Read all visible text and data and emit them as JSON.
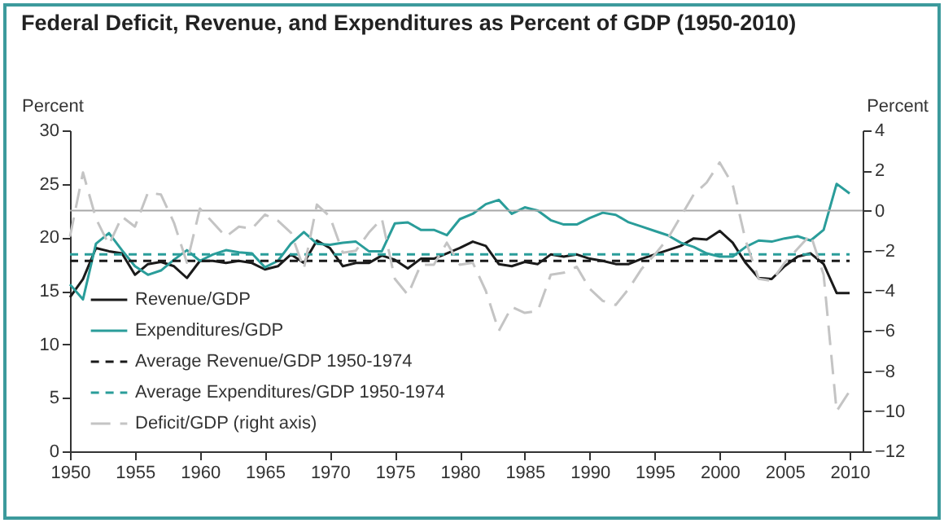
{
  "chart_data": {
    "type": "line",
    "title": "Federal Deficit, Revenue, and Expenditures as Percent of GDP (1950-2010)",
    "ylabel": "Percent",
    "y2label": "Percent",
    "x": [
      1950,
      1951,
      1952,
      1953,
      1954,
      1955,
      1956,
      1957,
      1958,
      1959,
      1960,
      1961,
      1962,
      1963,
      1964,
      1965,
      1966,
      1967,
      1968,
      1969,
      1970,
      1971,
      1972,
      1973,
      1974,
      1975,
      1976,
      1977,
      1978,
      1979,
      1980,
      1981,
      1982,
      1983,
      1984,
      1985,
      1986,
      1987,
      1988,
      1989,
      1990,
      1991,
      1992,
      1993,
      1994,
      1995,
      1996,
      1997,
      1998,
      1999,
      2000,
      2001,
      2002,
      2003,
      2004,
      2005,
      2006,
      2007,
      2008,
      2009,
      2010
    ],
    "series": [
      {
        "name": "Revenue/GDP",
        "color": "#1a1a1a",
        "line_style": "solid",
        "values": [
          14.4,
          16.1,
          19.0,
          18.7,
          18.5,
          16.5,
          17.5,
          17.7,
          17.3,
          16.2,
          17.8,
          17.8,
          17.6,
          17.8,
          17.6,
          17.0,
          17.3,
          18.4,
          17.6,
          19.7,
          19.0,
          17.3,
          17.6,
          17.6,
          18.3,
          17.9,
          17.1,
          18.0,
          18.0,
          18.5,
          19.0,
          19.6,
          19.2,
          17.5,
          17.3,
          17.7,
          17.5,
          18.4,
          18.2,
          18.4,
          18.0,
          17.8,
          17.5,
          17.5,
          18.0,
          18.4,
          18.8,
          19.2,
          19.9,
          19.8,
          20.6,
          19.5,
          17.6,
          16.2,
          16.1,
          17.3,
          18.2,
          18.5,
          17.5,
          14.8,
          14.8
        ]
      },
      {
        "name": "Expenditures/GDP",
        "color": "#2a9d9a",
        "line_style": "solid",
        "values": [
          15.6,
          14.2,
          19.4,
          20.4,
          18.8,
          17.3,
          16.5,
          16.9,
          17.9,
          18.8,
          17.8,
          18.4,
          18.8,
          18.6,
          18.5,
          17.2,
          17.8,
          19.4,
          20.5,
          19.4,
          19.3,
          19.5,
          19.6,
          18.7,
          18.7,
          21.3,
          21.4,
          20.7,
          20.7,
          20.2,
          21.7,
          22.2,
          23.1,
          23.5,
          22.2,
          22.8,
          22.5,
          21.6,
          21.2,
          21.2,
          21.8,
          22.3,
          22.1,
          21.4,
          21.0,
          20.6,
          20.2,
          19.5,
          19.1,
          18.5,
          18.2,
          18.2,
          19.1,
          19.7,
          19.6,
          19.9,
          20.1,
          19.7,
          20.7,
          25.0,
          24.1
        ]
      },
      {
        "name": "Average Revenue/GDP 1950-1974",
        "color": "#1a1a1a",
        "line_style": "dashed",
        "values": [
          17.8,
          17.8,
          17.8,
          17.8,
          17.8,
          17.8,
          17.8,
          17.8,
          17.8,
          17.8,
          17.8,
          17.8,
          17.8,
          17.8,
          17.8,
          17.8,
          17.8,
          17.8,
          17.8,
          17.8,
          17.8,
          17.8,
          17.8,
          17.8,
          17.8,
          17.8,
          17.8,
          17.8,
          17.8,
          17.8,
          17.8,
          17.8,
          17.8,
          17.8,
          17.8,
          17.8,
          17.8,
          17.8,
          17.8,
          17.8,
          17.8,
          17.8,
          17.8,
          17.8,
          17.8,
          17.8,
          17.8,
          17.8,
          17.8,
          17.8,
          17.8,
          17.8,
          17.8,
          17.8,
          17.8,
          17.8,
          17.8,
          17.8,
          17.8,
          17.8,
          17.8
        ]
      },
      {
        "name": "Average Expenditures/GDP 1950-1974",
        "color": "#2a9d9a",
        "line_style": "dashed",
        "values": [
          18.4,
          18.4,
          18.4,
          18.4,
          18.4,
          18.4,
          18.4,
          18.4,
          18.4,
          18.4,
          18.4,
          18.4,
          18.4,
          18.4,
          18.4,
          18.4,
          18.4,
          18.4,
          18.4,
          18.4,
          18.4,
          18.4,
          18.4,
          18.4,
          18.4,
          18.4,
          18.4,
          18.4,
          18.4,
          18.4,
          18.4,
          18.4,
          18.4,
          18.4,
          18.4,
          18.4,
          18.4,
          18.4,
          18.4,
          18.4,
          18.4,
          18.4,
          18.4,
          18.4,
          18.4,
          18.4,
          18.4,
          18.4,
          18.4,
          18.4,
          18.4,
          18.4,
          18.4,
          18.4,
          18.4,
          18.4,
          18.4,
          18.4,
          18.4,
          18.4,
          18.4
        ]
      },
      {
        "name": "Deficit/GDP (right axis)",
        "color": "#c4c4c4",
        "line_style": "dashed",
        "axis": "y2",
        "values": [
          -1.3,
          1.9,
          -0.4,
          -1.7,
          -0.3,
          -0.8,
          0.9,
          0.8,
          -0.6,
          -2.6,
          0.1,
          -0.6,
          -1.3,
          -0.8,
          -0.9,
          -0.2,
          -0.5,
          -1.1,
          -2.9,
          0.3,
          -0.3,
          -2.1,
          -2.0,
          -1.1,
          -0.4,
          -3.4,
          -4.2,
          -2.7,
          -2.7,
          -1.6,
          -2.7,
          -2.6,
          -4.0,
          -6.0,
          -4.8,
          -5.1,
          -5.0,
          -3.2,
          -3.1,
          -2.8,
          -3.9,
          -4.5,
          -4.7,
          -3.9,
          -2.9,
          -2.2,
          -1.4,
          -0.3,
          0.8,
          1.4,
          2.4,
          1.3,
          -1.5,
          -3.4,
          -3.5,
          -2.6,
          -1.9,
          -1.2,
          -3.2,
          -10.0,
          -9.0
        ]
      }
    ],
    "xlim": [
      1950,
      2011
    ],
    "xticks": [
      1950,
      1955,
      1960,
      1965,
      1970,
      1975,
      1980,
      1985,
      1990,
      1995,
      2000,
      2005,
      2010
    ],
    "ylim": [
      0,
      30
    ],
    "yticks": [
      0,
      5,
      10,
      15,
      20,
      25,
      30
    ],
    "y2lim": [
      -12,
      4
    ],
    "y2ticks": [
      -12,
      -10,
      -8,
      -6,
      -4,
      -2,
      0,
      2,
      4
    ],
    "ref_lines": [
      {
        "axis": "y2",
        "value": 0,
        "color": "#a8a8a8",
        "line_style": "solid"
      }
    ],
    "legend": "bottom left",
    "grid": false,
    "marker": "none"
  }
}
